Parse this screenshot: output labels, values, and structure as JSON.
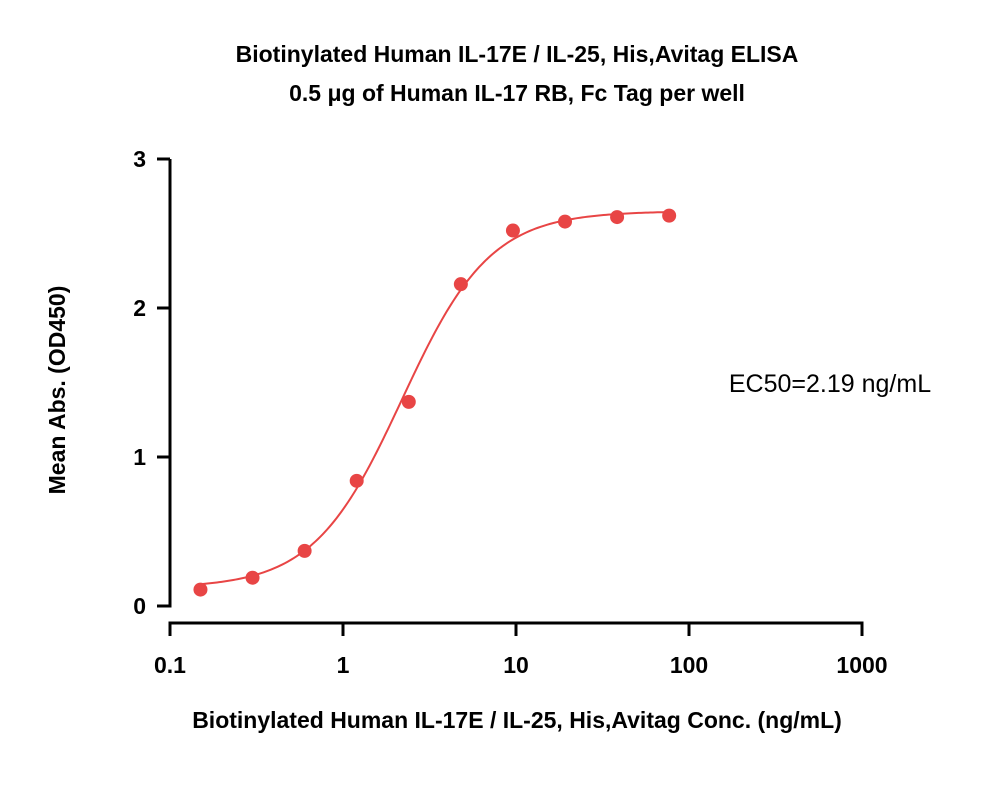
{
  "chart_data": {
    "type": "scatter",
    "title": "Biotinylated Human IL-17E / IL-25, His,Avitag ELISA",
    "subtitle": "0.5 μg of Human IL-17 RB, Fc Tag per well",
    "xlabel": "Biotinylated Human IL-17E / IL-25, His,Avitag Conc. (ng/mL)",
    "ylabel": "Mean Abs. (OD450)",
    "x_scale": "log",
    "xlim": [
      0.1,
      1000
    ],
    "ylim": [
      0,
      3
    ],
    "x_ticks": [
      0.1,
      1,
      10,
      100,
      1000
    ],
    "x_tick_labels": [
      "0.1",
      "1",
      "10",
      "100",
      "1000"
    ],
    "y_ticks": [
      0,
      1,
      2,
      3
    ],
    "y_tick_labels": [
      "0",
      "1",
      "2",
      "3"
    ],
    "grid": false,
    "annotation": "EC50=2.19 ng/mL",
    "series": [
      {
        "color": "#e84545",
        "x": [
          0.15,
          0.3,
          0.6,
          1.2,
          2.4,
          4.8,
          9.6,
          19.2,
          38.4,
          76.8
        ],
        "y": [
          0.11,
          0.19,
          0.37,
          0.84,
          1.37,
          2.16,
          2.52,
          2.58,
          2.61,
          2.62
        ]
      }
    ],
    "fit": {
      "color": "#e84545",
      "bottom": 0.12,
      "top": 2.65,
      "ec50": 2.19,
      "hill": 1.7,
      "x_range": [
        0.15,
        76.8
      ]
    }
  }
}
